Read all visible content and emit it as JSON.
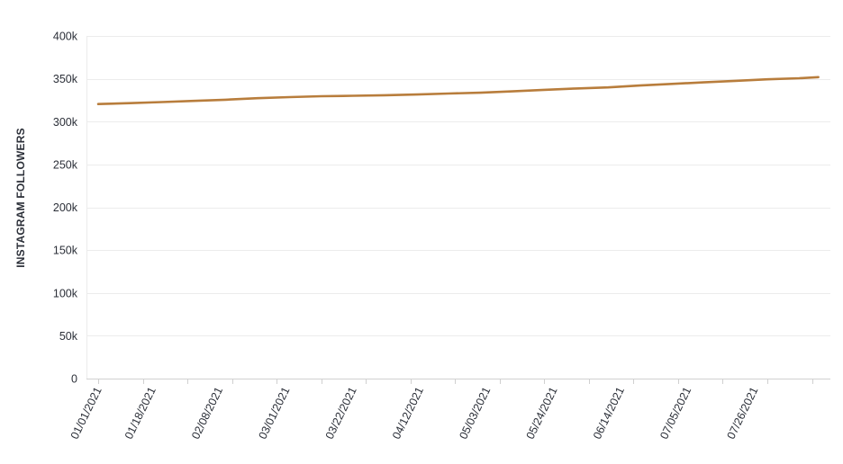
{
  "chart_data": {
    "type": "line",
    "title": "",
    "xlabel": "",
    "ylabel": "INSTAGRAM FOLLOWERS",
    "ylim": [
      0,
      400000
    ],
    "y_ticks": [
      0,
      50000,
      100000,
      150000,
      200000,
      250000,
      300000,
      350000,
      400000
    ],
    "y_tick_labels": [
      "0",
      "50k",
      "100k",
      "150k",
      "200k",
      "250k",
      "300k",
      "350k",
      "400k"
    ],
    "x_tick_labels": [
      "01/01/2021",
      "01/18/2021",
      "02/08/2021",
      "03/01/2021",
      "03/22/2021",
      "04/12/2021",
      "05/03/2021",
      "05/24/2021",
      "06/14/2021",
      "07/05/2021",
      "07/26/2021"
    ],
    "grid": true,
    "legend": "none",
    "colors": {
      "line": "#b87d3c",
      "grid": "#ececec",
      "axis": "#d0d0d0",
      "text": "#2b2f38"
    },
    "series": [
      {
        "x": [
          "01/01/2021",
          "01/11/2021",
          "01/21/2021",
          "01/31/2021",
          "02/10/2021",
          "02/20/2021",
          "03/02/2021",
          "03/12/2021",
          "03/22/2021",
          "04/01/2021",
          "04/11/2021",
          "04/21/2021",
          "05/01/2021",
          "05/11/2021",
          "05/21/2021",
          "05/31/2021",
          "06/10/2021",
          "06/20/2021",
          "06/30/2021",
          "07/10/2021",
          "07/20/2021",
          "07/30/2021",
          "08/09/2021",
          "08/15/2021"
        ],
        "values": [
          320500,
          321600,
          322800,
          324200,
          325600,
          327300,
          328600,
          329700,
          330200,
          330800,
          331700,
          332800,
          333800,
          335300,
          337100,
          338700,
          339900,
          342200,
          344000,
          345800,
          347600,
          349400,
          350700,
          351900
        ]
      }
    ]
  }
}
